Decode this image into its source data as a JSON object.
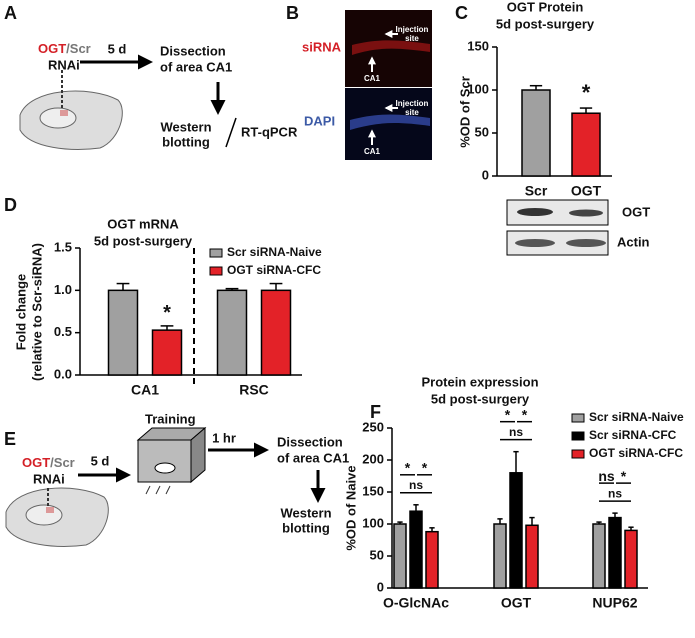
{
  "panels": {
    "A": {
      "label": "A",
      "ogt": "OGT",
      "scr": "/Scr",
      "rnai": "RNAi",
      "days": "5 d",
      "dissection": [
        "Dissection",
        "of area CA1"
      ],
      "western": [
        "Western",
        "blotting"
      ],
      "qpcr": "RT-qPCR"
    },
    "B": {
      "label": "B",
      "sirna": "siRNA",
      "dapi": "DAPI",
      "injection": [
        "Injection",
        "site"
      ],
      "ca1": "CA1"
    },
    "C": {
      "label": "C"
    },
    "D": {
      "label": "D"
    },
    "E": {
      "label": "E",
      "ogt": "OGT",
      "scr": "/Scr",
      "rnai": "RNAi",
      "days": "5 d",
      "training": "Training",
      "hour": "1 hr",
      "dissection": [
        "Dissection",
        "of area CA1"
      ],
      "western": [
        "Western",
        "blotting"
      ]
    },
    "F": {
      "label": "F"
    }
  },
  "chart_data": [
    {
      "type": "bar",
      "title": [
        "OGT Protein",
        "5d post-surgery"
      ],
      "ylabel": "%OD of Scr",
      "categories": [
        "Scr",
        "OGT"
      ],
      "values": [
        100,
        73
      ],
      "errors": [
        5,
        6
      ],
      "colors": [
        "#a0a0a0",
        "#e32228"
      ],
      "annotations": [
        null,
        "*"
      ],
      "ylim": [
        0,
        150
      ],
      "yticks": [
        0,
        50,
        100,
        150
      ],
      "blot_labels": [
        "OGT",
        "Actin"
      ]
    },
    {
      "type": "bar",
      "title": [
        "OGT mRNA",
        "5d post-surgery"
      ],
      "ylabel": [
        "Fold change",
        "(relative to Scr-siRNA)"
      ],
      "categories": [
        "CA1",
        "RSC"
      ],
      "series": [
        {
          "name": "Scr siRNA-Naive",
          "color": "#a0a0a0",
          "values": [
            1.0,
            1.0
          ],
          "errors": [
            0.08,
            0.02
          ],
          "annotations": [
            null,
            null
          ]
        },
        {
          "name": "OGT siRNA-CFC",
          "color": "#e32228",
          "values": [
            0.53,
            1.0
          ],
          "errors": [
            0.05,
            0.08
          ],
          "annotations": [
            "*",
            null
          ]
        }
      ],
      "ylim": [
        0,
        1.5
      ],
      "yticks": [
        {
          "value": 0,
          "label": "0.0"
        },
        {
          "value": 0.5,
          "label": "0.5"
        },
        {
          "value": 1,
          "label": "1.0"
        },
        {
          "value": 1.5,
          "label": "1.5"
        }
      ]
    },
    {
      "type": "bar",
      "title": [
        "Protein expression",
        "5d post-surgery"
      ],
      "ylabel": "%OD of Naive",
      "categories": [
        "O-GlcNAc",
        "OGT",
        "NUP62"
      ],
      "series": [
        {
          "name": "Scr siRNA-Naive",
          "color": "#a0a0a0",
          "values": [
            100,
            100,
            100
          ],
          "errors": [
            3,
            8,
            3
          ]
        },
        {
          "name": "Scr siRNA-CFC",
          "color": "#000000",
          "values": [
            120,
            180,
            110
          ],
          "errors": [
            10,
            33,
            7
          ]
        },
        {
          "name": "OGT siRNA-CFC",
          "color": "#e32228",
          "values": [
            88,
            98,
            90
          ],
          "errors": [
            6,
            12,
            5
          ]
        }
      ],
      "comparisons": [
        [
          "*",
          "*",
          "ns"
        ],
        [
          "*",
          "*",
          "ns"
        ],
        [
          "ns",
          "*",
          "ns"
        ]
      ],
      "ylim": [
        0,
        250
      ],
      "yticks": [
        0,
        50,
        100,
        150,
        200,
        250
      ]
    }
  ]
}
